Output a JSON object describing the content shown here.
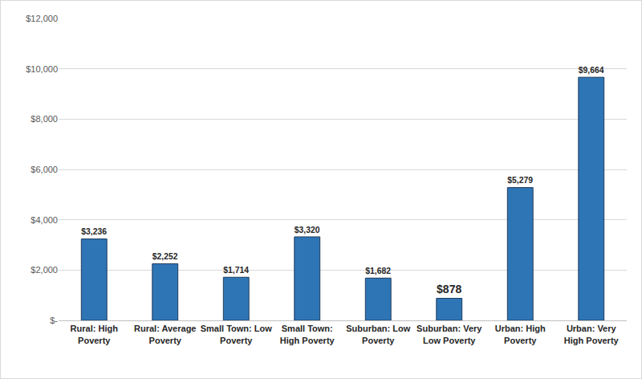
{
  "chart_data": {
    "type": "bar",
    "categories": [
      "Rural: High Poverty",
      "Rural: Average Poverty",
      "Small Town: Low Poverty",
      "Small Town: High Poverty",
      "Suburban: Low Poverty",
      "Suburban: Very Low Poverty",
      "Urban: High Poverty",
      "Urban: Very High Poverty"
    ],
    "values": [
      3236,
      2252,
      1714,
      3320,
      1682,
      878,
      5279,
      9664
    ],
    "value_labels": [
      "$3,236",
      "$2,252",
      "$1,714",
      "$3,320",
      "$1,682",
      "$878",
      "$5,279",
      "$9,664"
    ],
    "color": "#2e75b6",
    "ylim": [
      0,
      12000
    ],
    "yticks": [
      {
        "value": 0,
        "label": "$-"
      },
      {
        "value": 2000,
        "label": "$2,000"
      },
      {
        "value": 4000,
        "label": "$4,000"
      },
      {
        "value": 6000,
        "label": "$6,000"
      },
      {
        "value": 8000,
        "label": "$8,000"
      },
      {
        "value": 10000,
        "label": "$10,000"
      },
      {
        "value": 12000,
        "label": "$12,000"
      }
    ],
    "grid": true,
    "data_labels": true
  }
}
